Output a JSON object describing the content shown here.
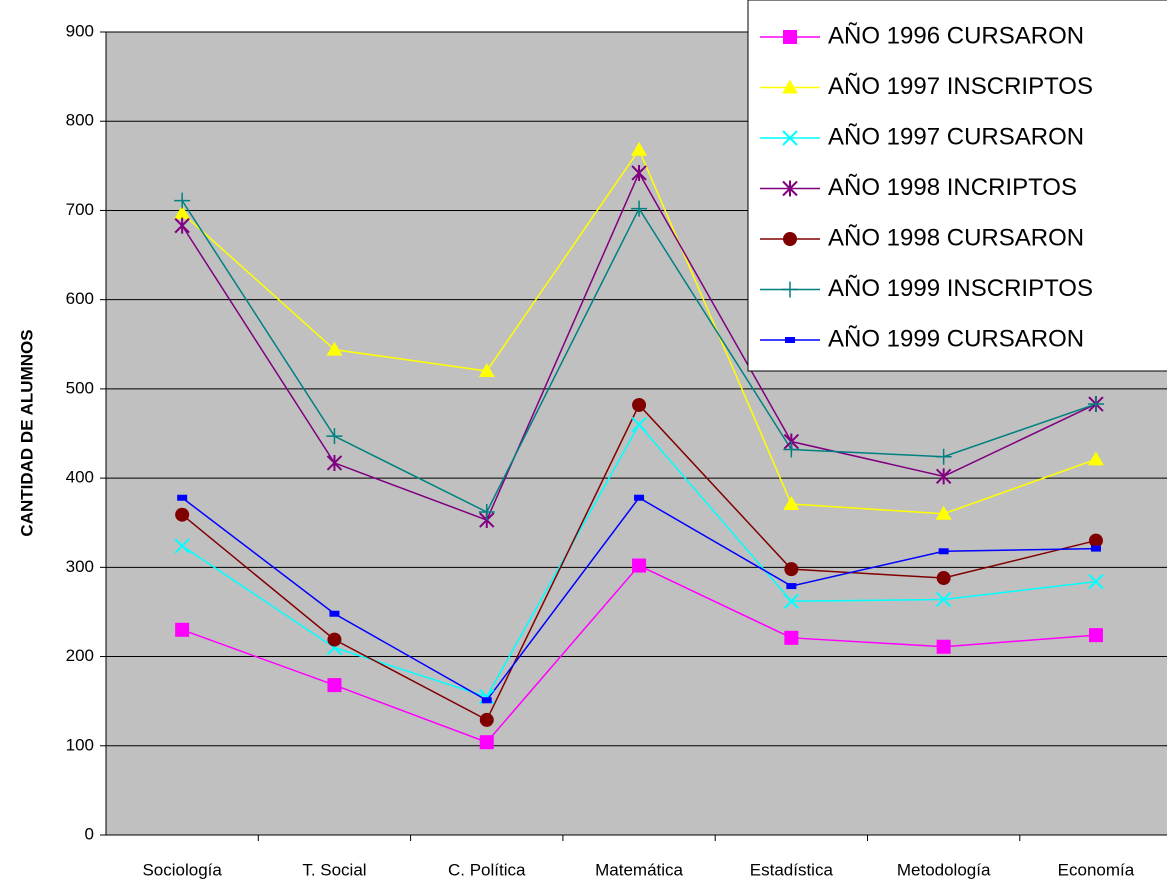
{
  "chart_data": {
    "type": "line",
    "y_label": "CANTIDAD DE ALUMNOS",
    "categories": [
      "Sociología",
      "T. Social",
      "C. Política",
      "Matemática",
      "Estadística",
      "Metodología",
      "Economía"
    ],
    "ylim": [
      0,
      900
    ],
    "yticks": [
      0,
      100,
      200,
      300,
      400,
      500,
      600,
      700,
      800,
      900
    ],
    "grid": true,
    "legend": "top-right",
    "series": [
      {
        "name": "AÑO 1996 CURSARON",
        "color": "#ff00ff",
        "marker": "square",
        "values": [
          230,
          168,
          104,
          302,
          221,
          211,
          224
        ]
      },
      {
        "name": "AÑO 1997 INSCRIPTOS",
        "color": "#ffff00",
        "marker": "triangle",
        "values": [
          697,
          544,
          520,
          768,
          371,
          360,
          421
        ]
      },
      {
        "name": "AÑO 1997 CURSARON",
        "color": "#00ffff",
        "marker": "x",
        "values": [
          324,
          210,
          155,
          460,
          262,
          264,
          284
        ]
      },
      {
        "name": "AÑO 1998 INCRIPTOS",
        "color": "#800080",
        "marker": "star",
        "values": [
          683,
          417,
          353,
          742,
          441,
          402,
          483
        ]
      },
      {
        "name": "AÑO 1998 CURSARON",
        "color": "#800000",
        "marker": "circle",
        "values": [
          359,
          219,
          129,
          482,
          298,
          288,
          330
        ]
      },
      {
        "name": "AÑO 1999 INSCRIPTOS",
        "color": "#008080",
        "marker": "plus",
        "values": [
          711,
          447,
          362,
          702,
          432,
          424,
          483
        ]
      },
      {
        "name": "AÑO 1999 CURSARON",
        "color": "#0000ff",
        "marker": "dash",
        "values": [
          378,
          248,
          151,
          378,
          279,
          318,
          321
        ]
      }
    ]
  }
}
